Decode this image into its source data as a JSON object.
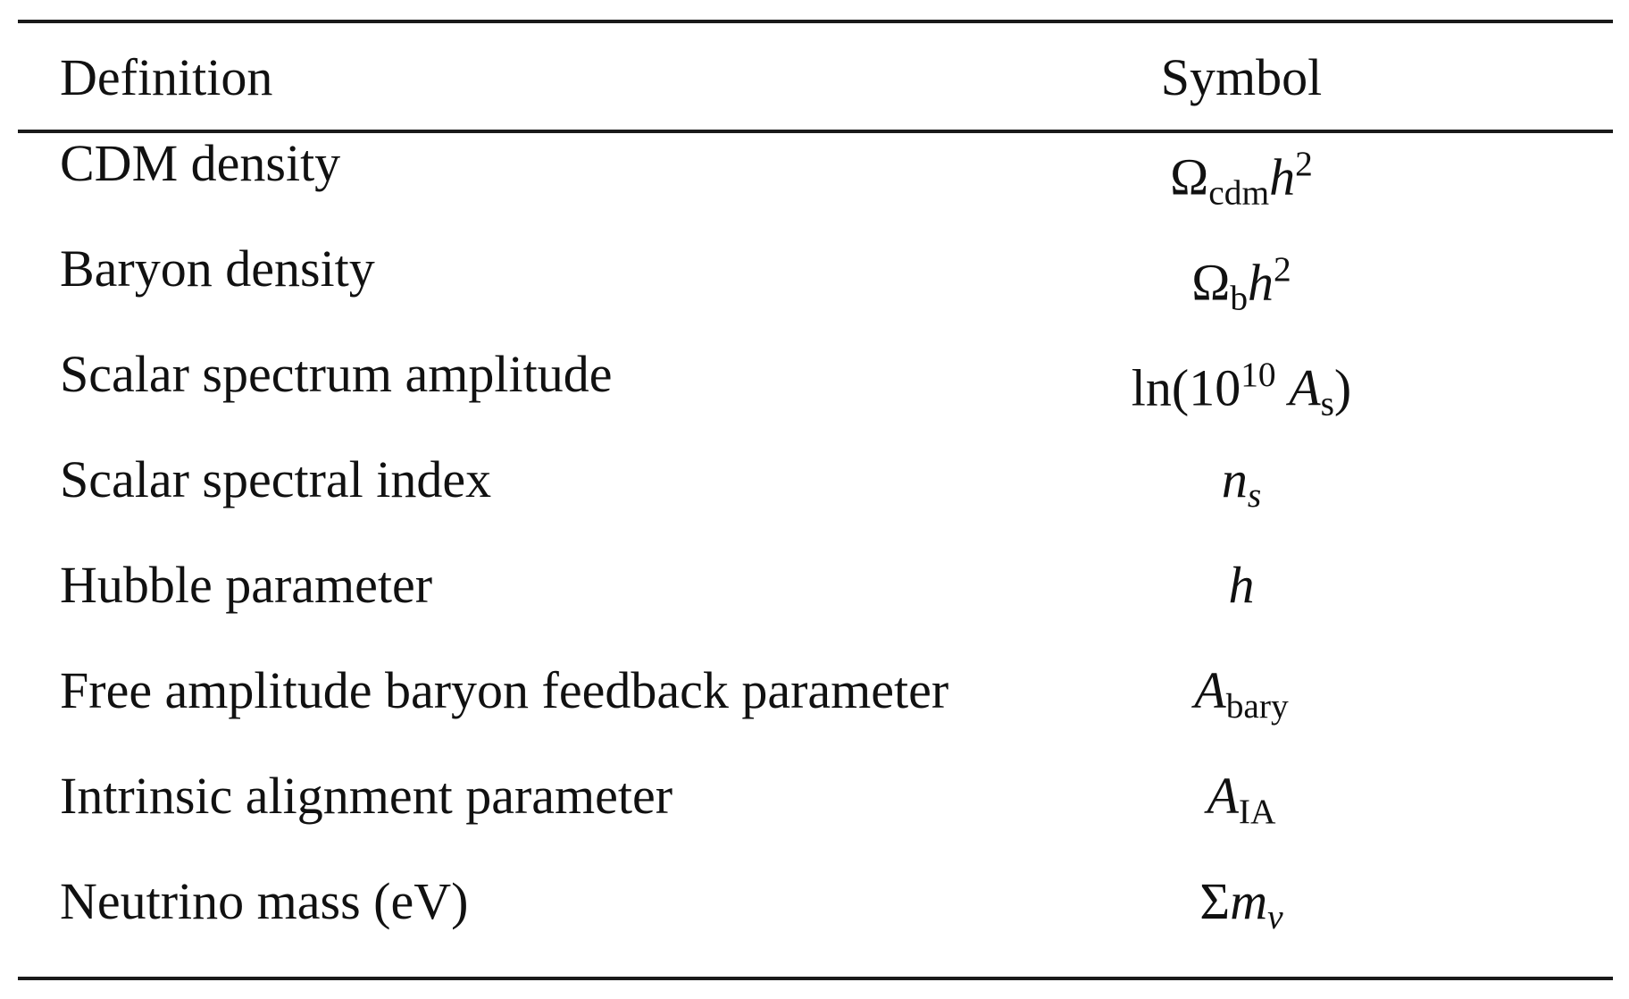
{
  "table": {
    "headers": {
      "definition": "Definition",
      "symbol": "Symbol"
    },
    "rows": [
      {
        "definition": "CDM density",
        "symbol": {
          "base": "Ω",
          "sub": "cdm",
          "var": "h",
          "sup": "2"
        }
      },
      {
        "definition": "Baryon density",
        "symbol": {
          "base": "Ω",
          "sub": "b",
          "var": "h",
          "sup": "2"
        }
      },
      {
        "definition": "Scalar spectrum amplitude",
        "symbol": {
          "prefix": "ln(10",
          "sup": "10",
          "var": "A",
          "sub": "s",
          "suffix": ")"
        }
      },
      {
        "definition": "Scalar spectral index",
        "symbol": {
          "var": "n",
          "sub": "s"
        }
      },
      {
        "definition": "Hubble parameter",
        "symbol": {
          "var": "h"
        }
      },
      {
        "definition": "Free amplitude baryon feedback parameter",
        "symbol": {
          "var": "A",
          "sub": "bary"
        }
      },
      {
        "definition": "Intrinsic alignment parameter",
        "symbol": {
          "var": "A",
          "sub": "IA"
        }
      },
      {
        "definition": "Neutrino mass (eV)",
        "symbol": {
          "base": "Σ",
          "var": "m",
          "sub": "ν"
        }
      }
    ]
  }
}
